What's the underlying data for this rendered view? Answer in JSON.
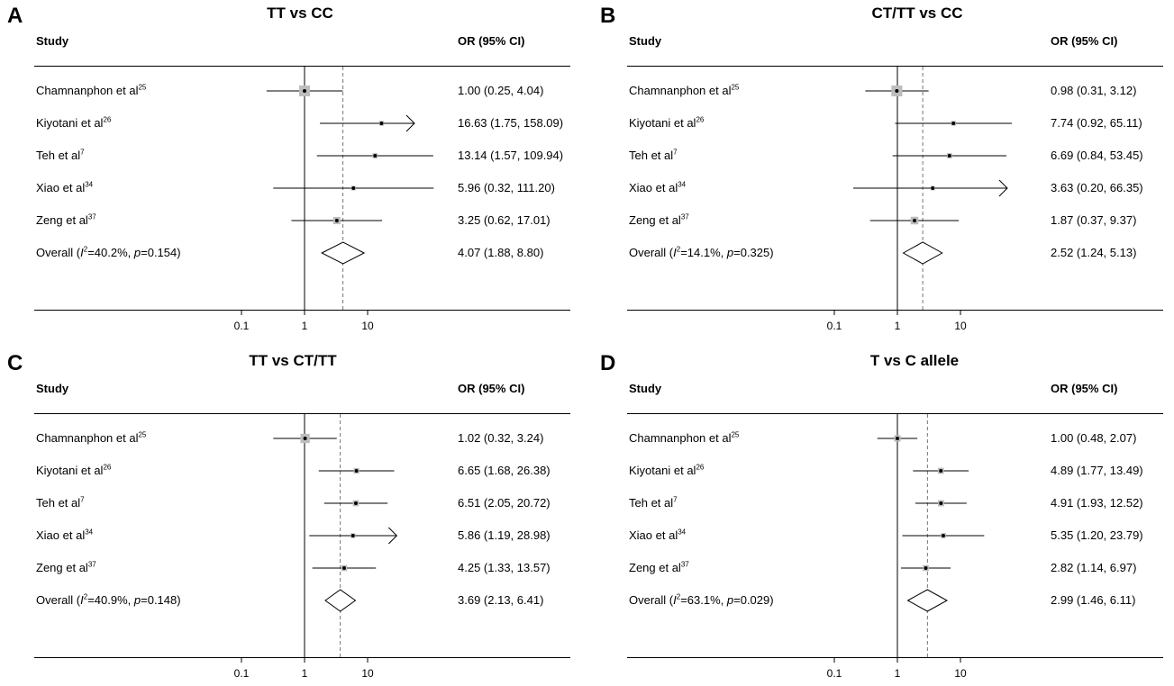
{
  "chart_data": [
    {
      "type": "forest",
      "panel_label": "A",
      "title": "TT vs CC",
      "column_headers": {
        "study": "Study",
        "effect": "OR (95% CI)"
      },
      "x_scale": "log",
      "x_ticks": [
        {
          "value": 0.1,
          "label": "0.1"
        },
        {
          "value": 1,
          "label": "1"
        },
        {
          "value": 10,
          "label": "10"
        }
      ],
      "x_range": [
        0.008,
        180
      ],
      "null_line": 1,
      "studies": [
        {
          "name": "Chamnanphon et al",
          "ref": "25",
          "or": 1.0,
          "lo": 0.25,
          "hi": 4.04,
          "or_text": "1.00 (0.25, 4.04)",
          "weight": 0.9
        },
        {
          "name": "Kiyotani et al",
          "ref": "26",
          "or": 16.63,
          "lo": 1.75,
          "hi": 158.09,
          "or_text": "16.63 (1.75, 158.09)",
          "weight": 0.15,
          "clipped_right": true
        },
        {
          "name": "Teh et al",
          "ref": "7",
          "or": 13.14,
          "lo": 1.57,
          "hi": 109.94,
          "or_text": "13.14 (1.57, 109.94)",
          "weight": 0.2
        },
        {
          "name": "Xiao et al",
          "ref": "34",
          "or": 5.96,
          "lo": 0.32,
          "hi": 111.2,
          "or_text": "5.96 (0.32, 111.20)",
          "weight": 0.12
        },
        {
          "name": "Zeng et al",
          "ref": "37",
          "or": 3.25,
          "lo": 0.62,
          "hi": 17.01,
          "or_text": "3.25 (0.62, 17.01)",
          "weight": 0.45
        }
      ],
      "overall": {
        "label_prefix": "Overall (",
        "i2_symbol": "I",
        "i2_value": "=40.2%, ",
        "p_symbol": "p",
        "p_value": "=0.154)",
        "or": 4.07,
        "lo": 1.88,
        "hi": 8.8,
        "or_text": "4.07 (1.88, 8.80)"
      }
    },
    {
      "type": "forest",
      "panel_label": "B",
      "title": "CT/TT vs CC",
      "column_headers": {
        "study": "Study",
        "effect": "OR (95% CI)"
      },
      "x_scale": "log",
      "x_ticks": [
        {
          "value": 0.1,
          "label": "0.1"
        },
        {
          "value": 1,
          "label": "1"
        },
        {
          "value": 10,
          "label": "10"
        }
      ],
      "x_range": [
        0.008,
        70
      ],
      "null_line": 1,
      "studies": [
        {
          "name": "Chamnanphon et al",
          "ref": "25",
          "or": 0.98,
          "lo": 0.31,
          "hi": 3.12,
          "or_text": "0.98 (0.31, 3.12)",
          "weight": 0.9
        },
        {
          "name": "Kiyotani et al",
          "ref": "26",
          "or": 7.74,
          "lo": 0.92,
          "hi": 65.11,
          "or_text": "7.74 (0.92, 65.11)",
          "weight": 0.15
        },
        {
          "name": "Teh et al",
          "ref": "7",
          "or": 6.69,
          "lo": 0.84,
          "hi": 53.45,
          "or_text": "6.69 (0.84, 53.45)",
          "weight": 0.2
        },
        {
          "name": "Xiao et al",
          "ref": "34",
          "or": 3.63,
          "lo": 0.2,
          "hi": 66.35,
          "or_text": "3.63 (0.20, 66.35)",
          "weight": 0.1,
          "clipped_right": true
        },
        {
          "name": "Zeng et al",
          "ref": "37",
          "or": 1.87,
          "lo": 0.37,
          "hi": 9.37,
          "or_text": "1.87 (0.37, 9.37)",
          "weight": 0.5
        }
      ],
      "overall": {
        "label_prefix": "Overall (",
        "i2_symbol": "I",
        "i2_value": "=14.1%, ",
        "p_symbol": "p",
        "p_value": "=0.325)",
        "or": 2.52,
        "lo": 1.24,
        "hi": 5.13,
        "or_text": "2.52 (1.24, 5.13)"
      }
    },
    {
      "type": "forest",
      "panel_label": "C",
      "title": "TT vs CT/TT",
      "column_headers": {
        "study": "Study",
        "effect": "OR (95% CI)"
      },
      "x_scale": "log",
      "x_ticks": [
        {
          "value": 0.1,
          "label": "0.1"
        },
        {
          "value": 1,
          "label": "1"
        },
        {
          "value": 10,
          "label": "10"
        }
      ],
      "x_range": [
        0.008,
        30
      ],
      "null_line": 1,
      "studies": [
        {
          "name": "Chamnanphon et al",
          "ref": "25",
          "or": 1.02,
          "lo": 0.32,
          "hi": 3.24,
          "or_text": "1.02 (0.32, 3.24)",
          "weight": 0.7
        },
        {
          "name": "Kiyotani et al",
          "ref": "26",
          "or": 6.65,
          "lo": 1.68,
          "hi": 26.38,
          "or_text": "6.65 (1.68, 26.38)",
          "weight": 0.25
        },
        {
          "name": "Teh et al",
          "ref": "7",
          "or": 6.51,
          "lo": 2.05,
          "hi": 20.72,
          "or_text": "6.51 (2.05, 20.72)",
          "weight": 0.3
        },
        {
          "name": "Xiao et al",
          "ref": "34",
          "or": 5.86,
          "lo": 1.19,
          "hi": 28.98,
          "or_text": "5.86 (1.19, 28.98)",
          "weight": 0.15,
          "clipped_right": true
        },
        {
          "name": "Zeng et al",
          "ref": "37",
          "or": 4.25,
          "lo": 1.33,
          "hi": 13.57,
          "or_text": "4.25 (1.33, 13.57)",
          "weight": 0.3
        }
      ],
      "overall": {
        "label_prefix": "Overall (",
        "i2_symbol": "I",
        "i2_value": "=40.9%, ",
        "p_symbol": "p",
        "p_value": "=0.148)",
        "or": 3.69,
        "lo": 2.13,
        "hi": 6.41,
        "or_text": "3.69 (2.13, 6.41)"
      }
    },
    {
      "type": "forest",
      "panel_label": "D",
      "title": "T vs C allele",
      "column_headers": {
        "study": "Study",
        "effect": "OR (95% CI)"
      },
      "x_scale": "log",
      "x_ticks": [
        {
          "value": 0.1,
          "label": "0.1"
        },
        {
          "value": 1,
          "label": "1"
        },
        {
          "value": 10,
          "label": "10"
        }
      ],
      "x_range": [
        0.008,
        30
      ],
      "null_line": 1,
      "studies": [
        {
          "name": "Chamnanphon et al",
          "ref": "25",
          "or": 1.0,
          "lo": 0.48,
          "hi": 2.07,
          "or_text": "1.00 (0.48, 2.07)",
          "weight": 0.35
        },
        {
          "name": "Kiyotani et al",
          "ref": "26",
          "or": 4.89,
          "lo": 1.77,
          "hi": 13.49,
          "or_text": "4.89 (1.77, 13.49)",
          "weight": 0.3
        },
        {
          "name": "Teh et al",
          "ref": "7",
          "or": 4.91,
          "lo": 1.93,
          "hi": 12.52,
          "or_text": "4.91 (1.93, 12.52)",
          "weight": 0.32
        },
        {
          "name": "Xiao et al",
          "ref": "34",
          "or": 5.35,
          "lo": 1.2,
          "hi": 23.79,
          "or_text": "5.35 (1.20, 23.79)",
          "weight": 0.18
        },
        {
          "name": "Zeng et al",
          "ref": "37",
          "or": 2.82,
          "lo": 1.14,
          "hi": 6.97,
          "or_text": "2.82 (1.14, 6.97)",
          "weight": 0.3
        }
      ],
      "overall": {
        "label_prefix": "Overall (",
        "i2_symbol": "I",
        "i2_value": "=63.1%, ",
        "p_symbol": "p",
        "p_value": "=0.029)",
        "or": 2.99,
        "lo": 1.46,
        "hi": 6.11,
        "or_text": "2.99 (1.46, 6.11)"
      }
    }
  ]
}
